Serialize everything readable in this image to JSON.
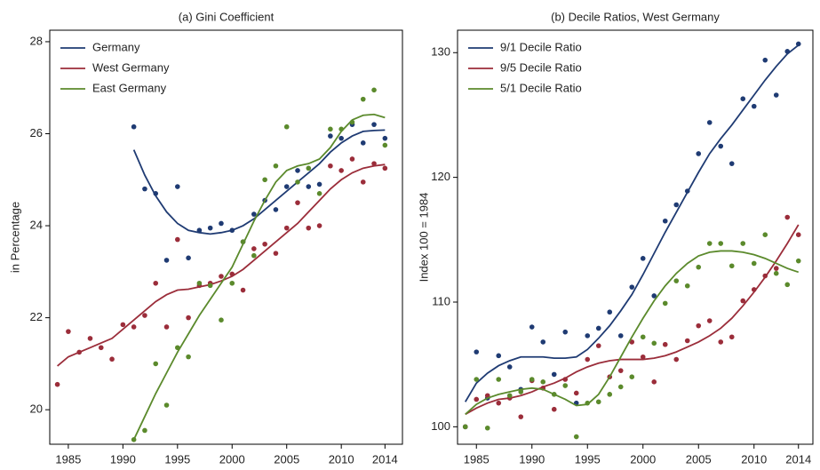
{
  "chart_data": [
    {
      "type": "scatter",
      "title": "(a) Gini Coefficient",
      "y_label": "in Percentage",
      "x": [
        1984,
        1985,
        1986,
        1987,
        1988,
        1989,
        1990,
        1991,
        1992,
        1993,
        1994,
        1995,
        1996,
        1997,
        1998,
        1999,
        2000,
        2001,
        2002,
        2003,
        2004,
        2005,
        2006,
        2007,
        2008,
        2009,
        2010,
        2011,
        2012,
        2013,
        2014
      ],
      "xlim": [
        1983.3,
        2015.6
      ],
      "xticks": [
        1985,
        1990,
        1995,
        2000,
        2005,
        2010,
        2014
      ],
      "ylim": [
        19.25,
        28.25
      ],
      "yticks": [
        20,
        22,
        24,
        26,
        28
      ],
      "legend": "top-left",
      "series": [
        {
          "name": "Germany",
          "color": "#1f3b73",
          "values": [
            null,
            null,
            null,
            null,
            null,
            null,
            null,
            26.15,
            24.8,
            24.7,
            23.25,
            24.85,
            23.3,
            23.9,
            23.95,
            24.05,
            23.9,
            23.65,
            24.25,
            24.55,
            24.35,
            24.85,
            25.2,
            24.85,
            24.9,
            25.95,
            25.9,
            26.2,
            25.8,
            26.2,
            25.9
          ],
          "smooth": [
            null,
            null,
            null,
            null,
            null,
            null,
            null,
            25.65,
            25.1,
            24.65,
            24.3,
            24.05,
            23.9,
            23.85,
            23.82,
            23.85,
            23.9,
            24.0,
            24.15,
            24.35,
            24.55,
            24.75,
            24.95,
            25.15,
            25.35,
            25.6,
            25.8,
            25.95,
            26.05,
            26.07,
            26.08
          ]
        },
        {
          "name": "West Germany",
          "color": "#9b2d3a",
          "values": [
            20.55,
            21.7,
            21.25,
            21.55,
            21.35,
            21.1,
            21.85,
            21.8,
            22.05,
            22.75,
            21.8,
            23.7,
            22.0,
            22.7,
            22.75,
            22.9,
            22.95,
            22.6,
            23.5,
            23.6,
            23.4,
            23.95,
            24.5,
            23.95,
            24.0,
            25.3,
            25.2,
            25.45,
            24.95,
            25.35,
            25.25
          ],
          "smooth": [
            20.95,
            21.15,
            21.25,
            21.35,
            21.45,
            21.55,
            21.75,
            21.95,
            22.15,
            22.35,
            22.5,
            22.6,
            22.62,
            22.67,
            22.72,
            22.8,
            22.9,
            23.05,
            23.25,
            23.45,
            23.65,
            23.85,
            24.05,
            24.3,
            24.55,
            24.8,
            25.0,
            25.15,
            25.25,
            25.3,
            25.33
          ]
        },
        {
          "name": "East Germany",
          "color": "#5b8a2c",
          "values": [
            null,
            null,
            null,
            null,
            null,
            null,
            null,
            19.35,
            19.55,
            21.0,
            20.1,
            21.35,
            21.15,
            22.75,
            22.7,
            21.95,
            22.75,
            23.65,
            23.35,
            25.0,
            25.3,
            26.15,
            24.95,
            25.25,
            24.7,
            26.1,
            26.1,
            26.25,
            26.75,
            26.95,
            25.75
          ],
          "smooth": [
            null,
            null,
            null,
            null,
            null,
            null,
            null,
            19.35,
            19.85,
            20.35,
            20.8,
            21.25,
            21.65,
            22.05,
            22.4,
            22.75,
            23.1,
            23.6,
            24.1,
            24.55,
            24.95,
            25.2,
            25.3,
            25.35,
            25.45,
            25.7,
            26.05,
            26.3,
            26.4,
            26.42,
            26.35
          ]
        }
      ]
    },
    {
      "type": "scatter",
      "title": "(b) Decile Ratios, West Germany",
      "y_label": "Index 100 = 1984",
      "x": [
        1984,
        1985,
        1986,
        1987,
        1988,
        1989,
        1990,
        1991,
        1992,
        1993,
        1994,
        1995,
        1996,
        1997,
        1998,
        1999,
        2000,
        2001,
        2002,
        2003,
        2004,
        2005,
        2006,
        2007,
        2008,
        2009,
        2010,
        2011,
        2012,
        2013,
        2014
      ],
      "xlim": [
        1983.3,
        2015.3
      ],
      "xticks": [
        1985,
        1990,
        1995,
        2000,
        2005,
        2010,
        2014
      ],
      "ylim": [
        98.6,
        131.8
      ],
      "yticks": [
        100,
        110,
        120,
        130
      ],
      "legend": "top-left",
      "series": [
        {
          "name": "9/1 Decile Ratio",
          "color": "#1f3b73",
          "values": [
            100,
            106,
            102.3,
            105.7,
            104.8,
            103,
            108,
            106.8,
            104.2,
            107.6,
            101.9,
            107.3,
            107.9,
            109.2,
            107.3,
            111.2,
            113.5,
            110.5,
            116.5,
            117.8,
            118.9,
            121.9,
            124.4,
            122.5,
            121.1,
            126.3,
            125.7,
            129.4,
            126.6,
            130.1,
            130.7
          ],
          "smooth": [
            102,
            103.5,
            104.3,
            104.9,
            105.3,
            105.6,
            105.6,
            105.6,
            105.5,
            105.5,
            105.6,
            106.2,
            107.1,
            108.1,
            109.3,
            110.6,
            112.2,
            113.9,
            115.6,
            117.2,
            118.8,
            120.4,
            121.9,
            123.1,
            124.2,
            125.4,
            126.6,
            127.8,
            128.9,
            129.9,
            130.6
          ]
        },
        {
          "name": "9/5 Decile Ratio",
          "color": "#9b2d3a",
          "values": [
            100,
            102.2,
            102.5,
            101.9,
            102.3,
            100.8,
            103.7,
            103.1,
            101.4,
            103.8,
            102.7,
            105.4,
            106.5,
            104.0,
            104.5,
            106.8,
            105.6,
            103.6,
            106.6,
            105.4,
            106.9,
            108.1,
            108.5,
            106.8,
            107.2,
            110.1,
            111.0,
            112.1,
            112.7,
            116.8,
            115.4
          ],
          "smooth": [
            101,
            101.5,
            101.9,
            102.2,
            102.3,
            102.5,
            102.8,
            103.2,
            103.5,
            103.9,
            104.4,
            104.8,
            105.1,
            105.3,
            105.4,
            105.4,
            105.4,
            105.5,
            105.7,
            106.0,
            106.4,
            106.8,
            107.3,
            107.9,
            108.7,
            109.7,
            110.8,
            112.0,
            113.3,
            114.7,
            116.2
          ]
        },
        {
          "name": "5/1 Decile Ratio",
          "color": "#5b8a2c",
          "values": [
            100,
            103.8,
            99.9,
            103.8,
            102.5,
            102.8,
            103.8,
            103.6,
            102.6,
            103.3,
            99.2,
            101.9,
            102.0,
            102.6,
            103.2,
            104.0,
            107.2,
            106.7,
            109.9,
            111.7,
            111.3,
            112.8,
            114.7,
            114.7,
            112.9,
            114.7,
            113.1,
            115.4,
            112.3,
            111.4,
            113.3
          ],
          "smooth": [
            101,
            101.8,
            102.3,
            102.6,
            102.8,
            103.0,
            103.1,
            103.0,
            102.6,
            102.2,
            101.7,
            101.8,
            102.6,
            104.0,
            105.6,
            107.2,
            108.7,
            110.1,
            111.3,
            112.3,
            113.1,
            113.7,
            114.0,
            114.1,
            114.1,
            114.0,
            113.8,
            113.5,
            113.1,
            112.7,
            112.4
          ]
        }
      ]
    }
  ]
}
